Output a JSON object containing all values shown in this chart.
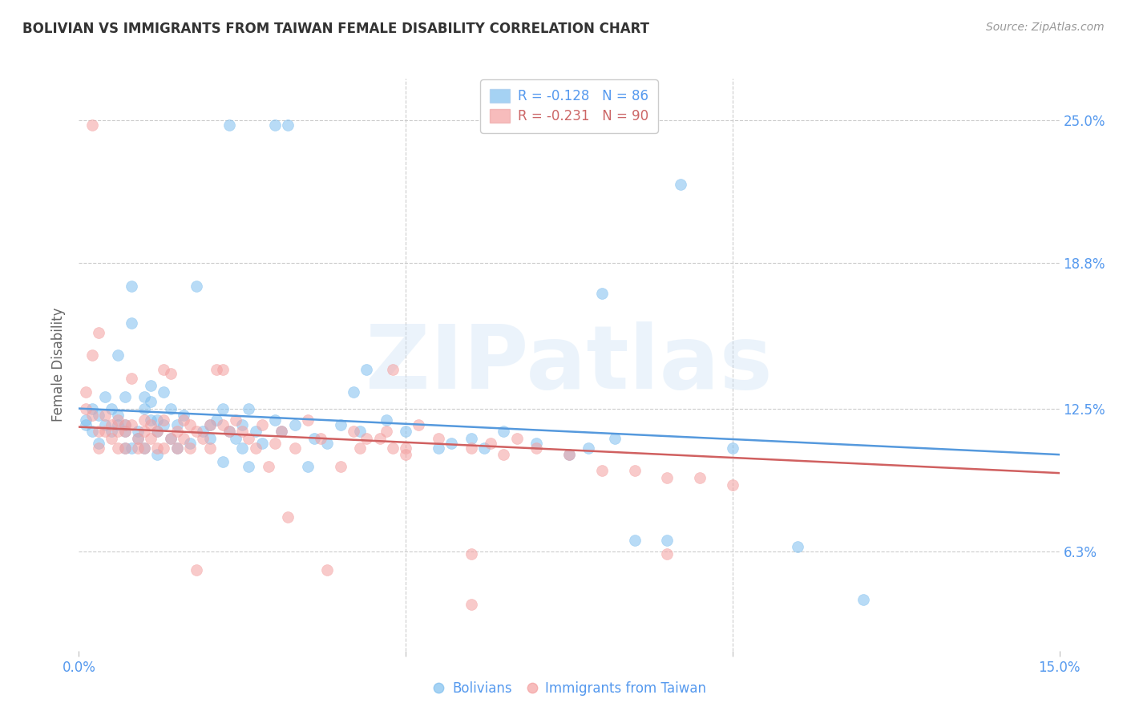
{
  "title": "BOLIVIAN VS IMMIGRANTS FROM TAIWAN FEMALE DISABILITY CORRELATION CHART",
  "source": "Source: ZipAtlas.com",
  "ylabel": "Female Disability",
  "ytick_labels": [
    "6.3%",
    "12.5%",
    "18.8%",
    "25.0%"
  ],
  "ytick_values": [
    0.063,
    0.125,
    0.188,
    0.25
  ],
  "xlim": [
    0.0,
    0.15
  ],
  "ylim": [
    0.02,
    0.268
  ],
  "watermark": "ZIPatlas",
  "legend_blue_label": "Bolivians",
  "legend_pink_label": "Immigrants from Taiwan",
  "legend_blue_R": "R = -0.128",
  "legend_blue_N": "N = 86",
  "legend_pink_R": "R = -0.231",
  "legend_pink_N": "N = 90",
  "blue_color": "#7fbfef",
  "pink_color": "#f4a0a0",
  "line_blue_color": "#5599dd",
  "line_pink_color": "#d06060",
  "blue_scatter": [
    [
      0.001,
      0.12
    ],
    [
      0.001,
      0.118
    ],
    [
      0.002,
      0.125
    ],
    [
      0.002,
      0.115
    ],
    [
      0.003,
      0.122
    ],
    [
      0.003,
      0.11
    ],
    [
      0.004,
      0.13
    ],
    [
      0.004,
      0.118
    ],
    [
      0.005,
      0.115
    ],
    [
      0.005,
      0.125
    ],
    [
      0.006,
      0.148
    ],
    [
      0.006,
      0.118
    ],
    [
      0.006,
      0.122
    ],
    [
      0.007,
      0.108
    ],
    [
      0.007,
      0.115
    ],
    [
      0.007,
      0.13
    ],
    [
      0.007,
      0.118
    ],
    [
      0.008,
      0.162
    ],
    [
      0.008,
      0.178
    ],
    [
      0.008,
      0.108
    ],
    [
      0.009,
      0.115
    ],
    [
      0.009,
      0.112
    ],
    [
      0.01,
      0.125
    ],
    [
      0.01,
      0.13
    ],
    [
      0.01,
      0.108
    ],
    [
      0.011,
      0.12
    ],
    [
      0.011,
      0.128
    ],
    [
      0.011,
      0.135
    ],
    [
      0.012,
      0.115
    ],
    [
      0.012,
      0.12
    ],
    [
      0.012,
      0.105
    ],
    [
      0.013,
      0.132
    ],
    [
      0.013,
      0.118
    ],
    [
      0.014,
      0.125
    ],
    [
      0.014,
      0.112
    ],
    [
      0.015,
      0.118
    ],
    [
      0.015,
      0.108
    ],
    [
      0.016,
      0.122
    ],
    [
      0.017,
      0.11
    ],
    [
      0.018,
      0.178
    ],
    [
      0.019,
      0.115
    ],
    [
      0.02,
      0.118
    ],
    [
      0.02,
      0.112
    ],
    [
      0.021,
      0.12
    ],
    [
      0.022,
      0.125
    ],
    [
      0.022,
      0.102
    ],
    [
      0.023,
      0.115
    ],
    [
      0.024,
      0.112
    ],
    [
      0.025,
      0.118
    ],
    [
      0.025,
      0.108
    ],
    [
      0.026,
      0.125
    ],
    [
      0.026,
      0.1
    ],
    [
      0.027,
      0.115
    ],
    [
      0.028,
      0.11
    ],
    [
      0.03,
      0.12
    ],
    [
      0.031,
      0.115
    ],
    [
      0.033,
      0.118
    ],
    [
      0.035,
      0.1
    ],
    [
      0.036,
      0.112
    ],
    [
      0.038,
      0.11
    ],
    [
      0.04,
      0.118
    ],
    [
      0.042,
      0.132
    ],
    [
      0.043,
      0.115
    ],
    [
      0.044,
      0.142
    ],
    [
      0.047,
      0.12
    ],
    [
      0.05,
      0.115
    ],
    [
      0.055,
      0.108
    ],
    [
      0.057,
      0.11
    ],
    [
      0.06,
      0.112
    ],
    [
      0.062,
      0.108
    ],
    [
      0.065,
      0.115
    ],
    [
      0.07,
      0.11
    ],
    [
      0.075,
      0.105
    ],
    [
      0.078,
      0.108
    ],
    [
      0.08,
      0.175
    ],
    [
      0.082,
      0.112
    ],
    [
      0.092,
      0.222
    ],
    [
      0.1,
      0.108
    ],
    [
      0.085,
      0.068
    ],
    [
      0.09,
      0.068
    ],
    [
      0.11,
      0.065
    ],
    [
      0.12,
      0.042
    ],
    [
      0.023,
      0.248
    ],
    [
      0.03,
      0.248
    ],
    [
      0.032,
      0.248
    ]
  ],
  "pink_scatter": [
    [
      0.001,
      0.132
    ],
    [
      0.001,
      0.125
    ],
    [
      0.002,
      0.148
    ],
    [
      0.002,
      0.122
    ],
    [
      0.003,
      0.158
    ],
    [
      0.003,
      0.115
    ],
    [
      0.003,
      0.108
    ],
    [
      0.004,
      0.122
    ],
    [
      0.004,
      0.115
    ],
    [
      0.005,
      0.118
    ],
    [
      0.005,
      0.112
    ],
    [
      0.006,
      0.108
    ],
    [
      0.006,
      0.115
    ],
    [
      0.006,
      0.12
    ],
    [
      0.007,
      0.118
    ],
    [
      0.007,
      0.108
    ],
    [
      0.007,
      0.115
    ],
    [
      0.008,
      0.138
    ],
    [
      0.008,
      0.118
    ],
    [
      0.009,
      0.112
    ],
    [
      0.009,
      0.108
    ],
    [
      0.01,
      0.115
    ],
    [
      0.01,
      0.12
    ],
    [
      0.01,
      0.108
    ],
    [
      0.011,
      0.118
    ],
    [
      0.011,
      0.112
    ],
    [
      0.012,
      0.115
    ],
    [
      0.012,
      0.108
    ],
    [
      0.013,
      0.142
    ],
    [
      0.013,
      0.12
    ],
    [
      0.013,
      0.108
    ],
    [
      0.014,
      0.14
    ],
    [
      0.014,
      0.112
    ],
    [
      0.015,
      0.115
    ],
    [
      0.015,
      0.108
    ],
    [
      0.016,
      0.12
    ],
    [
      0.016,
      0.112
    ],
    [
      0.017,
      0.118
    ],
    [
      0.017,
      0.108
    ],
    [
      0.018,
      0.115
    ],
    [
      0.019,
      0.112
    ],
    [
      0.02,
      0.118
    ],
    [
      0.02,
      0.108
    ],
    [
      0.021,
      0.142
    ],
    [
      0.022,
      0.142
    ],
    [
      0.022,
      0.118
    ],
    [
      0.023,
      0.115
    ],
    [
      0.024,
      0.12
    ],
    [
      0.025,
      0.115
    ],
    [
      0.026,
      0.112
    ],
    [
      0.027,
      0.108
    ],
    [
      0.028,
      0.118
    ],
    [
      0.029,
      0.1
    ],
    [
      0.03,
      0.11
    ],
    [
      0.031,
      0.115
    ],
    [
      0.032,
      0.078
    ],
    [
      0.033,
      0.108
    ],
    [
      0.035,
      0.12
    ],
    [
      0.037,
      0.112
    ],
    [
      0.04,
      0.1
    ],
    [
      0.042,
      0.115
    ],
    [
      0.043,
      0.108
    ],
    [
      0.044,
      0.112
    ],
    [
      0.047,
      0.115
    ],
    [
      0.05,
      0.108
    ],
    [
      0.05,
      0.105
    ],
    [
      0.052,
      0.118
    ],
    [
      0.055,
      0.112
    ],
    [
      0.06,
      0.108
    ],
    [
      0.063,
      0.11
    ],
    [
      0.065,
      0.105
    ],
    [
      0.067,
      0.112
    ],
    [
      0.07,
      0.108
    ],
    [
      0.075,
      0.105
    ],
    [
      0.08,
      0.098
    ],
    [
      0.085,
      0.098
    ],
    [
      0.09,
      0.095
    ],
    [
      0.095,
      0.095
    ],
    [
      0.1,
      0.092
    ],
    [
      0.048,
      0.142
    ],
    [
      0.06,
      0.062
    ],
    [
      0.09,
      0.062
    ],
    [
      0.002,
      0.248
    ],
    [
      0.046,
      0.112
    ],
    [
      0.048,
      0.108
    ],
    [
      0.018,
      0.055
    ],
    [
      0.038,
      0.055
    ],
    [
      0.06,
      0.04
    ]
  ]
}
